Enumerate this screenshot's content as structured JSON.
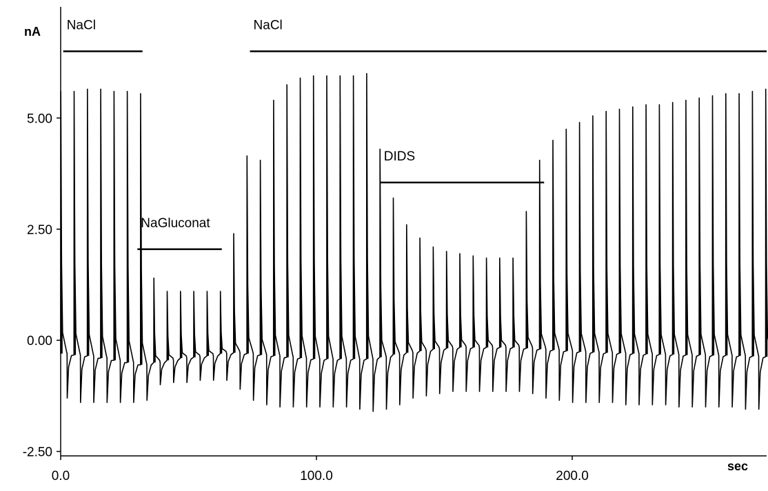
{
  "chart_data": {
    "type": "line",
    "title": "",
    "xlabel": "sec",
    "ylabel": "nA",
    "xlim": [
      0,
      276
    ],
    "ylim": [
      -2.6,
      7.5
    ],
    "x_ticks": [
      {
        "value": 0,
        "label": "0.0"
      },
      {
        "value": 100,
        "label": "100.0"
      },
      {
        "value": 200,
        "label": "200.0"
      }
    ],
    "y_ticks": [
      {
        "value": 5.0,
        "label": "5.00"
      },
      {
        "value": 2.5,
        "label": "2.50"
      },
      {
        "value": 0.0,
        "label": "0.00"
      },
      {
        "value": -2.5,
        "label": "-2.50"
      }
    ],
    "grid": false,
    "legend": "none",
    "annotations": [
      {
        "label": "NaCl",
        "x_start": 1,
        "x_end": 32,
        "y": 6.5
      },
      {
        "label": "NaCl",
        "x_start": 74,
        "x_end": 276,
        "y": 6.5
      },
      {
        "label": "NaGluconat",
        "x_start": 30,
        "x_end": 63,
        "y": 2.05
      },
      {
        "label": "DIDS",
        "x_start": 125,
        "x_end": 189,
        "y": 3.55
      }
    ],
    "series": [
      {
        "color": "#000000",
        "pulse_times": [
          0,
          5.2,
          10.4,
          15.6,
          20.8,
          26.0,
          31.2,
          36.4,
          41.6,
          46.8,
          52.0,
          57.2,
          62.4,
          67.6,
          72.8,
          78.0,
          83.2,
          88.4,
          93.6,
          98.8,
          104.0,
          109.2,
          114.4,
          119.6,
          124.8,
          130.0,
          135.2,
          140.4,
          145.6,
          150.8,
          156.0,
          161.2,
          166.4,
          171.6,
          176.8,
          182.0,
          187.2,
          192.4,
          197.6,
          202.8,
          208.0,
          213.2,
          218.4,
          223.6,
          228.8,
          234.0,
          239.2,
          244.4,
          249.6,
          254.8,
          260.0,
          265.2,
          270.4,
          275.6
        ],
        "peaks": [
          5.6,
          5.6,
          5.65,
          5.65,
          5.6,
          5.6,
          5.55,
          1.4,
          1.1,
          1.1,
          1.1,
          1.1,
          1.1,
          2.4,
          4.15,
          4.05,
          5.4,
          5.75,
          5.9,
          5.95,
          5.95,
          5.95,
          5.95,
          6.0,
          4.3,
          3.2,
          2.6,
          2.3,
          2.1,
          2.0,
          1.95,
          1.9,
          1.85,
          1.85,
          1.85,
          2.9,
          4.05,
          4.5,
          4.75,
          4.9,
          5.05,
          5.15,
          5.2,
          5.25,
          5.3,
          5.3,
          5.35,
          5.4,
          5.45,
          5.5,
          5.55,
          5.55,
          5.6,
          5.65
        ],
        "troughs": [
          -1.3,
          -1.4,
          -1.4,
          -1.4,
          -1.4,
          -1.4,
          -1.35,
          -1.0,
          -0.95,
          -0.95,
          -0.9,
          -0.9,
          -0.9,
          -1.1,
          -1.35,
          -1.45,
          -1.5,
          -1.5,
          -1.5,
          -1.5,
          -1.5,
          -1.5,
          -1.55,
          -1.6,
          -1.55,
          -1.45,
          -1.3,
          -1.25,
          -1.2,
          -1.15,
          -1.15,
          -1.15,
          -1.15,
          -1.15,
          -1.15,
          -1.2,
          -1.3,
          -1.35,
          -1.4,
          -1.4,
          -1.4,
          -1.4,
          -1.45,
          -1.45,
          -1.45,
          -1.45,
          -1.5,
          -1.5,
          -1.5,
          -1.5,
          -1.5,
          -1.55,
          -1.55,
          -1.6
        ],
        "baseline": [
          -0.3,
          -0.33,
          -0.35,
          -0.4,
          -0.45,
          -0.5,
          -0.55,
          -0.5,
          -0.45,
          -0.4,
          -0.38,
          -0.35,
          -0.3,
          -0.28,
          -0.3,
          -0.33,
          -0.35,
          -0.38,
          -0.4,
          -0.42,
          -0.42,
          -0.42,
          -0.42,
          -0.42,
          -0.38,
          -0.32,
          -0.28,
          -0.24,
          -0.2,
          -0.18,
          -0.16,
          -0.16,
          -0.16,
          -0.16,
          -0.16,
          -0.18,
          -0.2,
          -0.22,
          -0.24,
          -0.26,
          -0.27,
          -0.28,
          -0.29,
          -0.3,
          -0.31,
          -0.32,
          -0.32,
          -0.33,
          -0.33,
          -0.34,
          -0.34,
          -0.35,
          -0.36,
          -0.37
        ]
      }
    ]
  }
}
